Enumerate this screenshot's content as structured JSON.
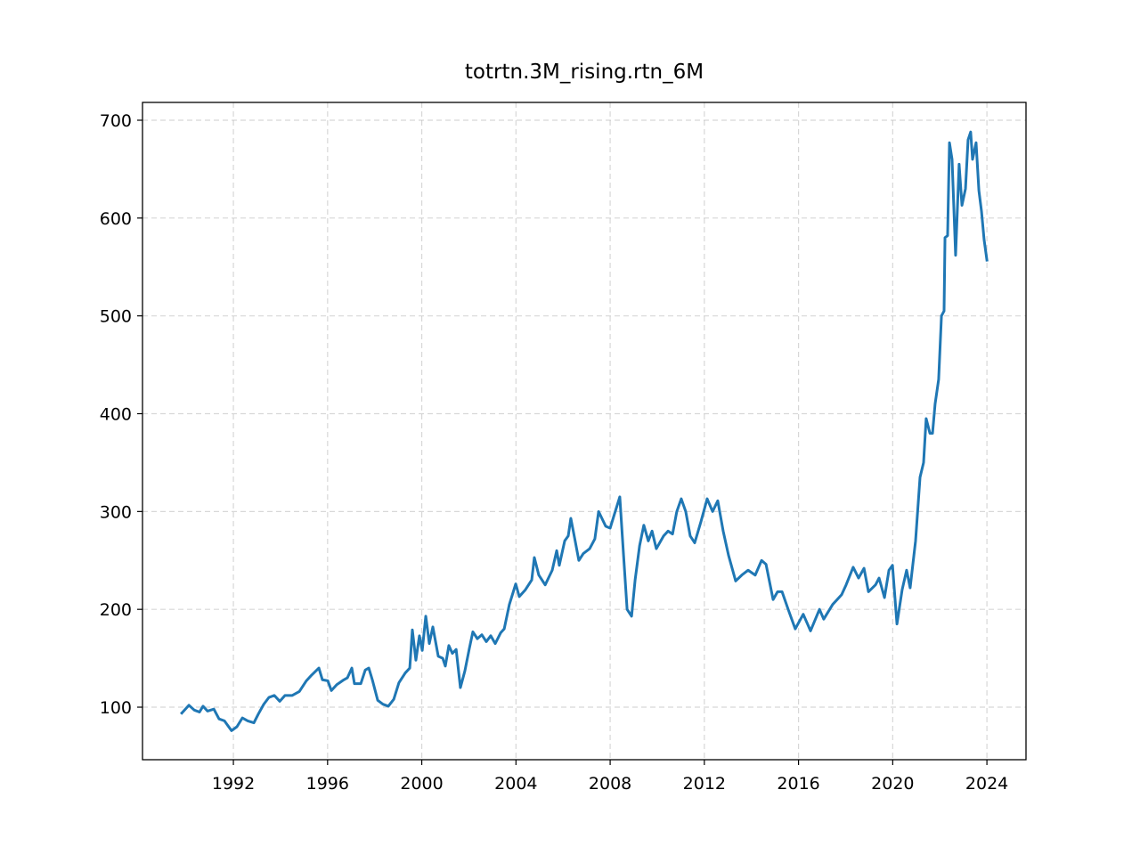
{
  "chart_data": {
    "type": "line",
    "title": "totrtn.3M_rising.rtn_6M",
    "color": "#1f77b4",
    "grid": true,
    "xlim": [
      1988.14,
      2025.66
    ],
    "ylim": [
      46.3,
      718.2
    ],
    "xticks": [
      1992,
      1996,
      2000,
      2004,
      2008,
      2012,
      2016,
      2020,
      2024
    ],
    "yticks": [
      100,
      200,
      300,
      400,
      500,
      600,
      700
    ],
    "x": [
      1989.81,
      1990.11,
      1990.34,
      1990.56,
      1990.71,
      1990.9,
      1991.17,
      1991.39,
      1991.62,
      1991.92,
      1992.15,
      1992.38,
      1992.61,
      1992.87,
      1993.06,
      1993.29,
      1993.51,
      1993.74,
      1993.97,
      1994.19,
      1994.5,
      1994.8,
      1995.1,
      1995.33,
      1995.63,
      1995.78,
      1996.01,
      1996.16,
      1996.39,
      1996.69,
      1996.84,
      1997.03,
      1997.14,
      1997.41,
      1997.6,
      1997.75,
      1997.9,
      1998.13,
      1998.35,
      1998.58,
      1998.81,
      1999.03,
      1999.3,
      1999.49,
      1999.6,
      1999.75,
      1999.9,
      2000.02,
      2000.17,
      2000.32,
      2000.47,
      2000.7,
      2000.89,
      2001.0,
      2001.15,
      2001.3,
      2001.46,
      2001.64,
      2001.83,
      2002.02,
      2002.17,
      2002.36,
      2002.55,
      2002.74,
      2002.93,
      2003.12,
      2003.35,
      2003.5,
      2003.72,
      2003.99,
      2004.14,
      2004.4,
      2004.67,
      2004.78,
      2004.97,
      2005.24,
      2005.54,
      2005.73,
      2005.84,
      2006.07,
      2006.22,
      2006.33,
      2006.49,
      2006.67,
      2006.86,
      2007.13,
      2007.35,
      2007.51,
      2007.81,
      2008.0,
      2008.19,
      2008.41,
      2008.57,
      2008.72,
      2008.91,
      2009.06,
      2009.25,
      2009.43,
      2009.62,
      2009.78,
      2009.96,
      2010.27,
      2010.46,
      2010.65,
      2010.83,
      2011.02,
      2011.21,
      2011.4,
      2011.59,
      2011.86,
      2012.12,
      2012.35,
      2012.57,
      2012.8,
      2013.03,
      2013.33,
      2013.59,
      2013.86,
      2014.16,
      2014.43,
      2014.62,
      2014.92,
      2015.11,
      2015.3,
      2015.56,
      2015.86,
      2016.2,
      2016.51,
      2016.89,
      2017.07,
      2017.45,
      2017.83,
      2018.02,
      2018.32,
      2018.55,
      2018.78,
      2018.97,
      2019.27,
      2019.42,
      2019.65,
      2019.84,
      2019.99,
      2020.18,
      2020.4,
      2020.59,
      2020.74,
      2020.97,
      2021.16,
      2021.31,
      2021.42,
      2021.58,
      2021.69,
      2021.8,
      2021.95,
      2022.07,
      2022.18,
      2022.22,
      2022.33,
      2022.41,
      2022.52,
      2022.67,
      2022.82,
      2022.94,
      2023.09,
      2023.2,
      2023.31,
      2023.39,
      2023.54,
      2023.66,
      2023.77,
      2023.88,
      2024.0
    ],
    "values": [
      94,
      102,
      97,
      95,
      101,
      96,
      98,
      88,
      86,
      76,
      80,
      89,
      86,
      84,
      93,
      103,
      110,
      112,
      106,
      112,
      112,
      116,
      127,
      133,
      140,
      128,
      127,
      117,
      123,
      128,
      130,
      140,
      124,
      124,
      138,
      140,
      128,
      107,
      103,
      101,
      108,
      125,
      135,
      140,
      179,
      148,
      173,
      158,
      193,
      165,
      182,
      152,
      150,
      142,
      163,
      155,
      159,
      120,
      137,
      160,
      177,
      170,
      174,
      167,
      173,
      165,
      176,
      180,
      205,
      226,
      213,
      220,
      230,
      253,
      235,
      225,
      240,
      260,
      245,
      270,
      275,
      293,
      273,
      250,
      257,
      262,
      272,
      300,
      285,
      283,
      298,
      315,
      255,
      200,
      193,
      230,
      265,
      286,
      270,
      280,
      262,
      275,
      280,
      277,
      300,
      313,
      300,
      275,
      268,
      290,
      313,
      300,
      311,
      280,
      255,
      229,
      235,
      240,
      235,
      250,
      246,
      210,
      218,
      218,
      200,
      180,
      195,
      178,
      200,
      190,
      205,
      215,
      225,
      243,
      232,
      242,
      218,
      225,
      232,
      212,
      240,
      245,
      185,
      220,
      240,
      222,
      270,
      335,
      350,
      395,
      380,
      380,
      410,
      435,
      500,
      505,
      580,
      582,
      677,
      660,
      562,
      655,
      613,
      630,
      680,
      688,
      660,
      677,
      628,
      607,
      578,
      557
    ]
  }
}
